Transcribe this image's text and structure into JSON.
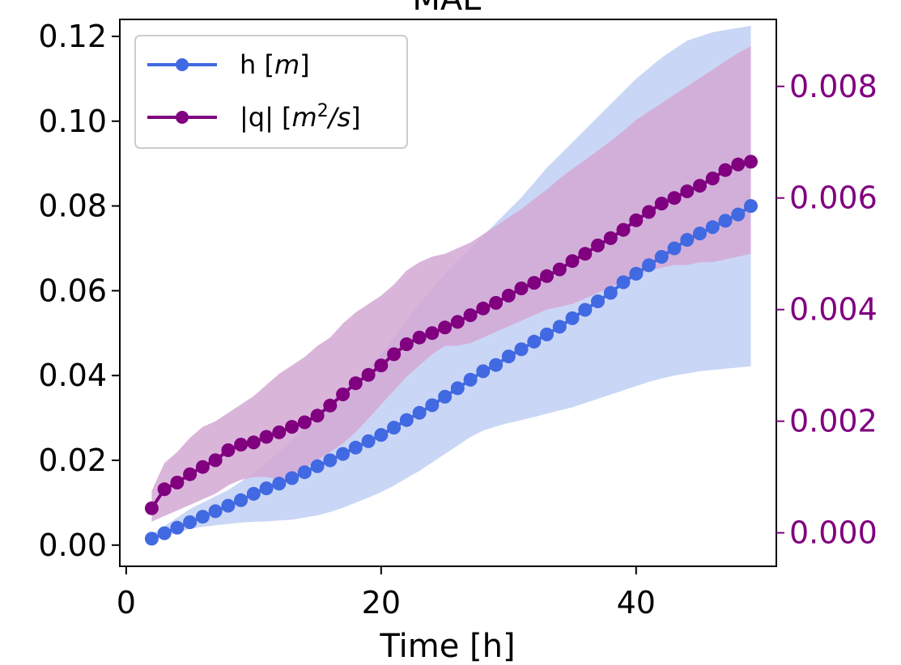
{
  "chart_data": {
    "type": "line",
    "title": "MAE",
    "xlabel": "Time [h]",
    "ylabel": "",
    "xlim": [
      -0.5,
      51
    ],
    "ylim_left": [
      -0.005,
      0.124
    ],
    "ylim_right": [
      -0.0006,
      0.0092
    ],
    "x_ticks": [
      0,
      20,
      40
    ],
    "x_tick_labels": [
      "0",
      "20",
      "40"
    ],
    "y_left_ticks": [
      0.0,
      0.02,
      0.04,
      0.06,
      0.08,
      0.1,
      0.12
    ],
    "y_left_tick_labels": [
      "0.00",
      "0.02",
      "0.04",
      "0.06",
      "0.08",
      "0.10",
      "0.12"
    ],
    "y_right_ticks": [
      0.0,
      0.002,
      0.004,
      0.006,
      0.008
    ],
    "y_right_tick_labels": [
      "0.000",
      "0.002",
      "0.004",
      "0.006",
      "0.008"
    ],
    "grid": false,
    "legend_position": "top-left",
    "x": [
      2,
      3,
      4,
      5,
      6,
      7,
      8,
      9,
      10,
      11,
      12,
      13,
      14,
      15,
      16,
      17,
      18,
      19,
      20,
      21,
      22,
      23,
      24,
      25,
      26,
      27,
      28,
      29,
      30,
      31,
      32,
      33,
      34,
      35,
      36,
      37,
      38,
      39,
      40,
      41,
      42,
      43,
      44,
      45,
      46,
      47,
      48,
      49
    ],
    "series": [
      {
        "name": "h [m]",
        "axis": "left",
        "color": "#4169e1",
        "band_color": "#c7d4f5",
        "values": [
          0.0015,
          0.0028,
          0.0041,
          0.0054,
          0.0067,
          0.008,
          0.0093,
          0.0106,
          0.0121,
          0.0134,
          0.0145,
          0.0158,
          0.0172,
          0.0186,
          0.02,
          0.0215,
          0.023,
          0.0245,
          0.026,
          0.0277,
          0.0295,
          0.0312,
          0.033,
          0.035,
          0.037,
          0.039,
          0.041,
          0.0425,
          0.0445,
          0.0462,
          0.048,
          0.0497,
          0.0515,
          0.0535,
          0.0555,
          0.0575,
          0.0595,
          0.062,
          0.064,
          0.066,
          0.068,
          0.07,
          0.072,
          0.0735,
          0.075,
          0.0765,
          0.078,
          0.08
        ],
        "lower": [
          0.001,
          0.002,
          0.003,
          0.0038,
          0.0043,
          0.0047,
          0.005,
          0.0053,
          0.0055,
          0.0056,
          0.0058,
          0.006,
          0.0065,
          0.007,
          0.0078,
          0.0088,
          0.01,
          0.0112,
          0.0125,
          0.014,
          0.0158,
          0.0175,
          0.0195,
          0.0215,
          0.0235,
          0.0255,
          0.027,
          0.028,
          0.0288,
          0.0295,
          0.0302,
          0.031,
          0.0318,
          0.0325,
          0.0335,
          0.0345,
          0.0355,
          0.0365,
          0.0375,
          0.0385,
          0.0393,
          0.04,
          0.0405,
          0.041,
          0.0413,
          0.0416,
          0.0419,
          0.0422
        ],
        "upper": [
          0.0025,
          0.0045,
          0.0065,
          0.0085,
          0.01,
          0.0115,
          0.013,
          0.015,
          0.017,
          0.0195,
          0.022,
          0.025,
          0.0275,
          0.03,
          0.033,
          0.036,
          0.039,
          0.042,
          0.045,
          0.049,
          0.053,
          0.057,
          0.0605,
          0.064,
          0.067,
          0.07,
          0.073,
          0.076,
          0.079,
          0.082,
          0.0855,
          0.089,
          0.092,
          0.095,
          0.098,
          0.101,
          0.104,
          0.107,
          0.11,
          0.1125,
          0.115,
          0.117,
          0.119,
          0.12,
          0.121,
          0.1215,
          0.122,
          0.1225
        ]
      },
      {
        "name": "|q| [m²/s]",
        "axis": "right",
        "color": "#800080",
        "band_color": "#d4a8d4",
        "values": [
          0.00044,
          0.00078,
          0.0009,
          0.00105,
          0.00118,
          0.0013,
          0.00148,
          0.00158,
          0.00162,
          0.00172,
          0.0018,
          0.0019,
          0.00198,
          0.0021,
          0.00228,
          0.00248,
          0.00268,
          0.00283,
          0.003,
          0.0032,
          0.00338,
          0.0035,
          0.00358,
          0.00368,
          0.00378,
          0.0039,
          0.00402,
          0.00412,
          0.00425,
          0.00438,
          0.00448,
          0.0046,
          0.00472,
          0.00487,
          0.005,
          0.00515,
          0.00528,
          0.00543,
          0.0056,
          0.00575,
          0.0059,
          0.006,
          0.00612,
          0.00622,
          0.00635,
          0.0065,
          0.0066,
          0.00665
        ],
        "lower": [
          0.0002,
          0.0003,
          0.0004,
          0.0005,
          0.0006,
          0.0007,
          0.00085,
          0.00095,
          0.001,
          0.001,
          0.00095,
          0.001,
          0.00115,
          0.0013,
          0.00145,
          0.0016,
          0.0018,
          0.00205,
          0.0023,
          0.00255,
          0.0028,
          0.003,
          0.0032,
          0.00335,
          0.00335,
          0.0034,
          0.0035,
          0.0036,
          0.0037,
          0.0038,
          0.0039,
          0.004,
          0.00405,
          0.0041,
          0.0042,
          0.0043,
          0.0044,
          0.0045,
          0.0046,
          0.0047,
          0.00475,
          0.0048,
          0.0048,
          0.00485,
          0.00485,
          0.0049,
          0.00495,
          0.005
        ],
        "upper": [
          0.00075,
          0.00125,
          0.00145,
          0.0017,
          0.0019,
          0.002,
          0.00215,
          0.0023,
          0.00245,
          0.00265,
          0.00285,
          0.003,
          0.00315,
          0.00335,
          0.0035,
          0.00375,
          0.00395,
          0.0041,
          0.00425,
          0.00445,
          0.0047,
          0.00485,
          0.00495,
          0.005,
          0.0051,
          0.0052,
          0.00535,
          0.0055,
          0.00565,
          0.0058,
          0.00598,
          0.00615,
          0.00635,
          0.00652,
          0.00668,
          0.00685,
          0.00702,
          0.0072,
          0.0074,
          0.00755,
          0.0077,
          0.00785,
          0.008,
          0.00815,
          0.0083,
          0.00845,
          0.0086,
          0.00872
        ]
      }
    ]
  }
}
